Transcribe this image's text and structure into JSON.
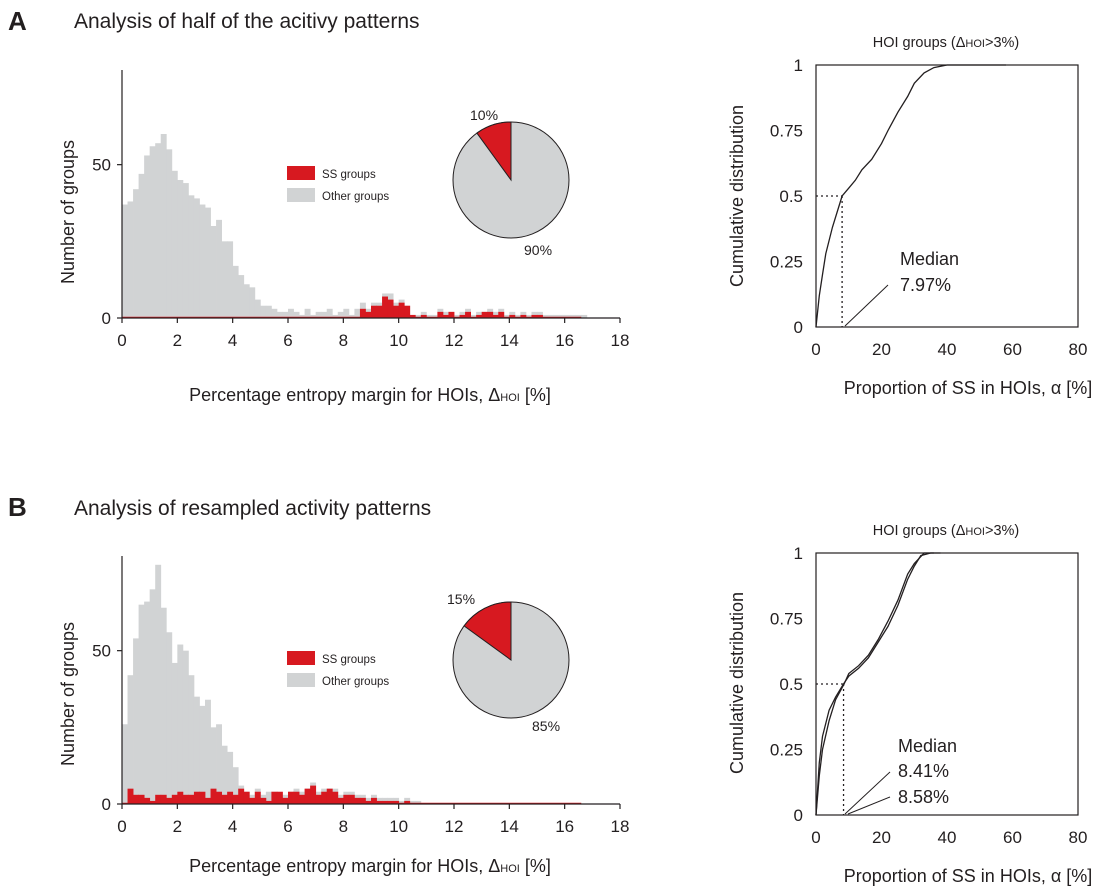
{
  "panels": [
    {
      "letter": "A",
      "title": "Analysis of half of the acitivy patterns",
      "histogram": {
        "xlabel_main": "Percentage entropy margin for HOIs, Δ",
        "xlabel_sub": "HOI",
        "xlabel_unit": " [%]",
        "ylabel": "Number of groups",
        "legend": [
          "SS groups",
          "Other groups"
        ],
        "pie_labels": [
          "10%",
          "90%"
        ]
      },
      "cdf": {
        "title_main": "HOI groups (Δ",
        "title_sub": "HOI",
        "title_tail": ">3%)",
        "xlabel": "Proportion of SS in HOIs,  α [%]",
        "ylabel": "Cumulative distribution",
        "median_label": "Median",
        "median_values": [
          "7.97%"
        ]
      }
    },
    {
      "letter": "B",
      "title": "Analysis of resampled activity patterns",
      "histogram": {
        "xlabel_main": "Percentage entropy margin for HOIs, Δ",
        "xlabel_sub": "HOI",
        "xlabel_unit": " [%]",
        "ylabel": "Number of groups",
        "legend": [
          "SS groups",
          "Other groups"
        ],
        "pie_labels": [
          "15%",
          "85%"
        ]
      },
      "cdf": {
        "title_main": "HOI groups (Δ",
        "title_sub": "HOI",
        "title_tail": ">3%)",
        "xlabel": "Proportion of SS in HOIs,  α [%]",
        "ylabel": "Cumulative distribution",
        "median_label": "Median",
        "median_values": [
          "8.41%",
          "8.58%"
        ]
      }
    }
  ],
  "colors": {
    "ss": "#d71920",
    "other": "#d1d3d4",
    "pie_other": "#d1d3d4",
    "axis": "#231f20"
  },
  "chart_data": [
    {
      "type": "bar",
      "panel": "A",
      "xlabel": "Percentage entropy margin for HOIs, ΔHOI [%]",
      "ylabel": "Number of groups",
      "xlim": [
        0,
        18
      ],
      "ylim": [
        0,
        75
      ],
      "xticks": [
        0,
        2,
        4,
        6,
        8,
        10,
        12,
        14,
        16,
        18
      ],
      "yticks": [
        0,
        50
      ],
      "bin_width": 0.2,
      "series": [
        {
          "name": "Other groups",
          "values": [
            37,
            38,
            42,
            47,
            53,
            56,
            57,
            60,
            55,
            48,
            45,
            44,
            40,
            39,
            37,
            36,
            30,
            32,
            25,
            25,
            17,
            14,
            11,
            10,
            6,
            4,
            4,
            3,
            2,
            2,
            3,
            2,
            1,
            3,
            1,
            2,
            2,
            3,
            1,
            2,
            3,
            1,
            3,
            5,
            3,
            5,
            5,
            8,
            8,
            5,
            6,
            4,
            1,
            1,
            2,
            1,
            1,
            3,
            2,
            2,
            1,
            2,
            3,
            1,
            2,
            2,
            3,
            2,
            3,
            1,
            2,
            1,
            2,
            1,
            2,
            2,
            1,
            1,
            1,
            1,
            1,
            1,
            1,
            1,
            0,
            0,
            0,
            0,
            0,
            0
          ]
        },
        {
          "name": "SS groups",
          "values": [
            0,
            0,
            0,
            0,
            0,
            0,
            0,
            0,
            0,
            0,
            0,
            0,
            0,
            0,
            0,
            0,
            0,
            0,
            0,
            0,
            0,
            0,
            0,
            0,
            0,
            0,
            0,
            0,
            0,
            0,
            0,
            0,
            0,
            0,
            0,
            0,
            0,
            0,
            0,
            0,
            0,
            0,
            0,
            3,
            2,
            4,
            4,
            7,
            6,
            4,
            5,
            4,
            1,
            0,
            1,
            0,
            0,
            2,
            1,
            2,
            0,
            1,
            2,
            0,
            1,
            2,
            2,
            1,
            2,
            0,
            1,
            0,
            1,
            0,
            1,
            1,
            0,
            0,
            0,
            0,
            0,
            0,
            0,
            0,
            0,
            0,
            0,
            0,
            0,
            0
          ]
        }
      ],
      "pie": {
        "slices": [
          {
            "label": "10%",
            "value": 10
          },
          {
            "label": "90%",
            "value": 90
          }
        ]
      }
    },
    {
      "type": "line",
      "panel": "A-cdf",
      "title": "HOI groups (ΔHOI>3%)",
      "xlabel": "Proportion of SS in HOIs,  α [%]",
      "ylabel": "Cumulative distribution",
      "xlim": [
        0,
        80
      ],
      "ylim": [
        0,
        1
      ],
      "xticks": [
        0,
        20,
        40,
        60,
        80
      ],
      "yticks": [
        "0",
        "0.25",
        "0.5",
        "0.75",
        "1"
      ],
      "median": [
        7.97
      ],
      "series": [
        {
          "x": [
            0,
            1,
            2,
            3,
            5,
            7.97,
            10,
            12,
            14,
            17,
            20,
            22,
            25,
            28,
            30,
            33,
            36,
            40,
            45,
            58
          ],
          "y": [
            0,
            0.12,
            0.2,
            0.28,
            0.38,
            0.5,
            0.53,
            0.56,
            0.6,
            0.64,
            0.7,
            0.75,
            0.82,
            0.88,
            0.93,
            0.97,
            0.99,
            1,
            1,
            1
          ]
        }
      ]
    },
    {
      "type": "bar",
      "panel": "B",
      "xlabel": "Percentage entropy margin for HOIs, ΔHOI [%]",
      "ylabel": "Number of groups",
      "xlim": [
        0,
        18
      ],
      "ylim": [
        0,
        75
      ],
      "xticks": [
        0,
        2,
        4,
        6,
        8,
        10,
        12,
        14,
        16,
        18
      ],
      "yticks": [
        0,
        50
      ],
      "bin_width": 0.2,
      "series": [
        {
          "name": "Other groups",
          "values": [
            26,
            42,
            54,
            65,
            66,
            70,
            78,
            64,
            56,
            46,
            52,
            50,
            42,
            35,
            32,
            34,
            25,
            26,
            19,
            17,
            12,
            6,
            4,
            3,
            5,
            3,
            4,
            4,
            3,
            3,
            4,
            5,
            4,
            5,
            7,
            4,
            5,
            5,
            5,
            3,
            4,
            4,
            3,
            3,
            2,
            3,
            2,
            2,
            2,
            2,
            1,
            2,
            1,
            1,
            0,
            0,
            0,
            0,
            0,
            0,
            0,
            0,
            0,
            0,
            0,
            0,
            0,
            0,
            0,
            0,
            0,
            0,
            0,
            0,
            0,
            0,
            0,
            0,
            0,
            0,
            0,
            0,
            0,
            0,
            0,
            0,
            0,
            0,
            0,
            0
          ]
        },
        {
          "name": "SS groups",
          "values": [
            0,
            5,
            3,
            3,
            2,
            1,
            3,
            3,
            2,
            3,
            4,
            3,
            3,
            4,
            4,
            2,
            5,
            4,
            3,
            4,
            3,
            5,
            4,
            2,
            4,
            2,
            1,
            4,
            4,
            2,
            4,
            4,
            3,
            5,
            6,
            3,
            4,
            5,
            4,
            2,
            3,
            3,
            2,
            2,
            1,
            2,
            1,
            1,
            1,
            1,
            0,
            1,
            0,
            0,
            0,
            0,
            0,
            0,
            0,
            0,
            0,
            0,
            0,
            0,
            0,
            0,
            0,
            0,
            0,
            0,
            0,
            0,
            0,
            0,
            0,
            0,
            0,
            0,
            0,
            0,
            0,
            0,
            0,
            0,
            0,
            0,
            0,
            0,
            0,
            0
          ]
        }
      ],
      "pie": {
        "slices": [
          {
            "label": "15%",
            "value": 15
          },
          {
            "label": "85%",
            "value": 85
          }
        ]
      }
    },
    {
      "type": "line",
      "panel": "B-cdf",
      "title": "HOI groups (ΔHOI>3%)",
      "xlabel": "Proportion of SS in HOIs,  α [%]",
      "ylabel": "Cumulative distribution",
      "xlim": [
        0,
        80
      ],
      "ylim": [
        0,
        1
      ],
      "xticks": [
        0,
        20,
        40,
        60,
        80
      ],
      "yticks": [
        "0",
        "0.25",
        "0.5",
        "0.75",
        "1"
      ],
      "median": [
        8.41,
        8.58
      ],
      "series": [
        {
          "x": [
            0,
            1,
            2,
            4,
            6,
            8.41,
            10,
            13,
            16,
            19,
            22,
            25,
            28,
            30,
            32,
            35,
            38
          ],
          "y": [
            0,
            0.2,
            0.3,
            0.4,
            0.45,
            0.5,
            0.53,
            0.56,
            0.6,
            0.66,
            0.72,
            0.8,
            0.9,
            0.95,
            0.99,
            1,
            1
          ]
        },
        {
          "x": [
            0,
            1,
            2,
            4,
            6,
            8.58,
            10,
            13,
            16,
            19,
            22,
            25,
            28,
            30,
            33,
            36
          ],
          "y": [
            0,
            0.15,
            0.25,
            0.36,
            0.44,
            0.5,
            0.54,
            0.57,
            0.61,
            0.67,
            0.74,
            0.82,
            0.92,
            0.96,
            1,
            1
          ]
        }
      ]
    }
  ]
}
